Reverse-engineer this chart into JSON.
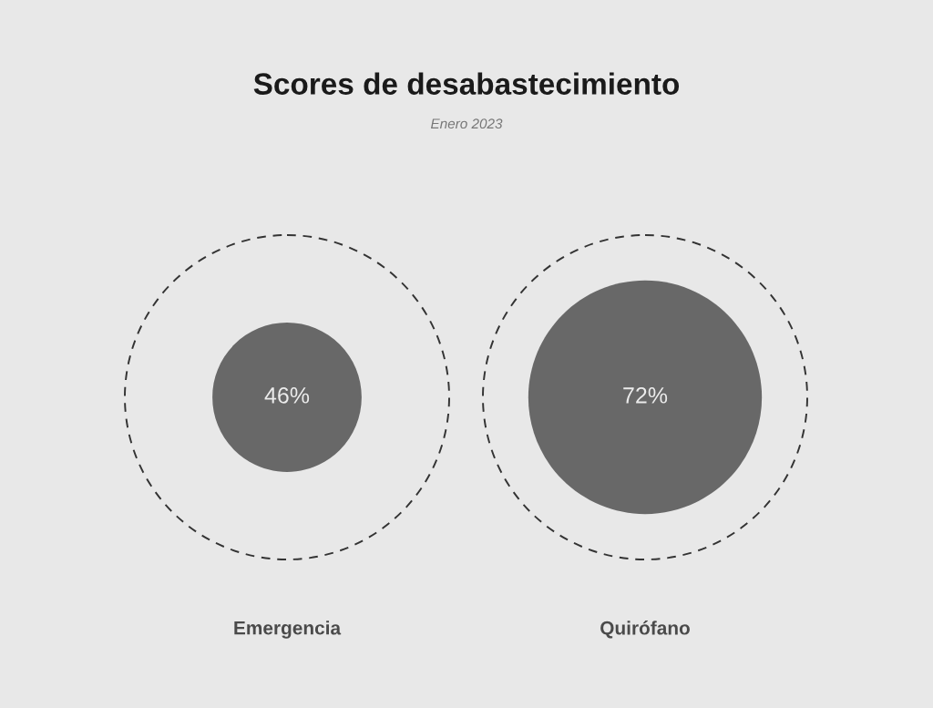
{
  "chart_data": {
    "type": "other",
    "title": "Scores de desabastecimiento",
    "subtitle": "Enero 2023",
    "categories": [
      "Emergencia",
      "Quirófano"
    ],
    "values": [
      46,
      72
    ],
    "value_labels": [
      "46%",
      "72%"
    ],
    "color": "#686868"
  }
}
